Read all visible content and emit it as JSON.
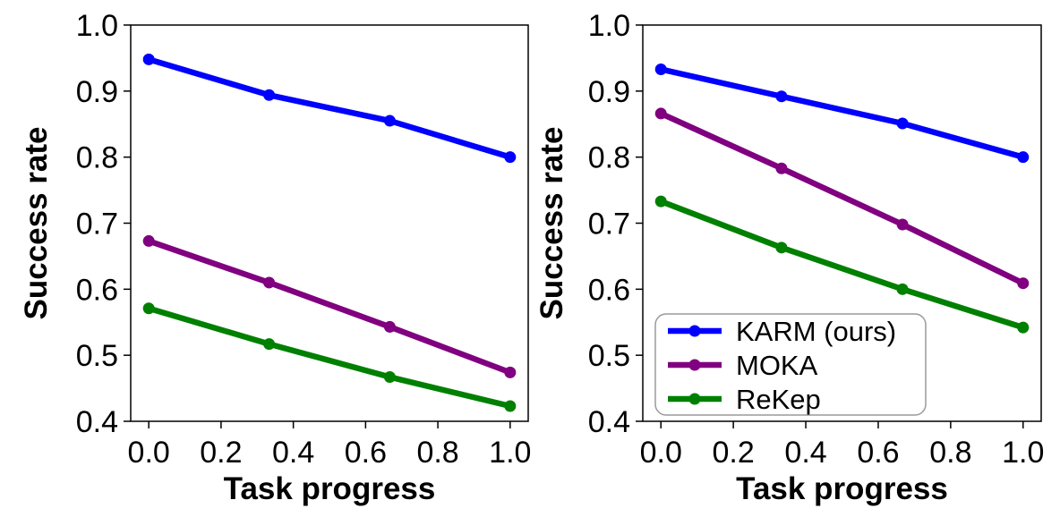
{
  "chart_data": [
    {
      "type": "line",
      "xlabel": "Task progress",
      "ylabel": "Success rate",
      "xlim": [
        -0.05,
        1.05
      ],
      "ylim": [
        0.4,
        1.0
      ],
      "xticks": [
        "0.0",
        "0.2",
        "0.4",
        "0.6",
        "0.8",
        "1.0"
      ],
      "yticks": [
        "0.4",
        "0.5",
        "0.6",
        "0.7",
        "0.8",
        "0.9",
        "1.0"
      ],
      "grid": false,
      "x": [
        0.0,
        0.333,
        0.667,
        1.0
      ],
      "series": [
        {
          "key": "karm",
          "values": [
            0.948,
            0.894,
            0.855,
            0.8
          ],
          "color": "#0000ff"
        },
        {
          "key": "moka",
          "values": [
            0.673,
            0.61,
            0.543,
            0.474
          ],
          "color": "#800080"
        },
        {
          "key": "rekep",
          "values": [
            0.571,
            0.517,
            0.467,
            0.423
          ],
          "color": "#008000"
        }
      ]
    },
    {
      "type": "line",
      "xlabel": "Task progress",
      "ylabel": "Success rate",
      "xlim": [
        -0.05,
        1.05
      ],
      "ylim": [
        0.4,
        1.0
      ],
      "xticks": [
        "0.0",
        "0.2",
        "0.4",
        "0.6",
        "0.8",
        "1.0"
      ],
      "yticks": [
        "0.4",
        "0.5",
        "0.6",
        "0.7",
        "0.8",
        "0.9",
        "1.0"
      ],
      "grid": false,
      "legend_position": "lower-left",
      "x": [
        0.0,
        0.333,
        0.667,
        1.0
      ],
      "series": [
        {
          "key": "karm",
          "name": "KARM (ours)",
          "values": [
            0.933,
            0.892,
            0.851,
            0.8
          ],
          "color": "#0000ff"
        },
        {
          "key": "moka",
          "name": "MOKA",
          "values": [
            0.866,
            0.783,
            0.698,
            0.609
          ],
          "color": "#800080"
        },
        {
          "key": "rekep",
          "name": "ReKep",
          "values": [
            0.733,
            0.663,
            0.6,
            0.542
          ],
          "color": "#008000"
        }
      ]
    }
  ]
}
